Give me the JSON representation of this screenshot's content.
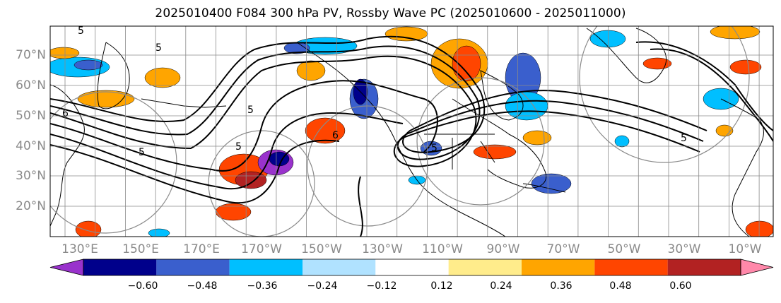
{
  "title": "2025010400 F084 300 hPa PV, Rossby Wave PC (2025010600 - 2025011000)",
  "lat_labels": [
    "70°N",
    "60°N",
    "50°N",
    "40°N",
    "30°N",
    "20°N"
  ],
  "lon_labels": [
    "130°E",
    "150°E",
    "170°E",
    "170°W",
    "150°W",
    "130°W",
    "110°W",
    "90°W",
    "70°W",
    "50°W",
    "30°W",
    "10°W"
  ],
  "colorbar": {
    "labels": [
      "−0.60",
      "−0.48",
      "−0.36",
      "−0.24",
      "−0.12",
      "0.12",
      "0.24",
      "0.36",
      "0.48",
      "0.60"
    ],
    "colors": [
      "#9932cc",
      "#00008b",
      "#3a5fcd",
      "#00bfff",
      "#b0e2ff",
      "#ffffff",
      "#ffec8b",
      "#ffa500",
      "#ff4500",
      "#b22222",
      "#ff88aa"
    ]
  },
  "contour_labels": [
    "5",
    "5",
    "6",
    "6",
    "5",
    "5",
    "5",
    "5",
    "5"
  ],
  "colors": {
    "gridline": "#8a8a8a",
    "label_gray": "#8a8a8a",
    "contour": "#000000",
    "coast": "#000000"
  }
}
